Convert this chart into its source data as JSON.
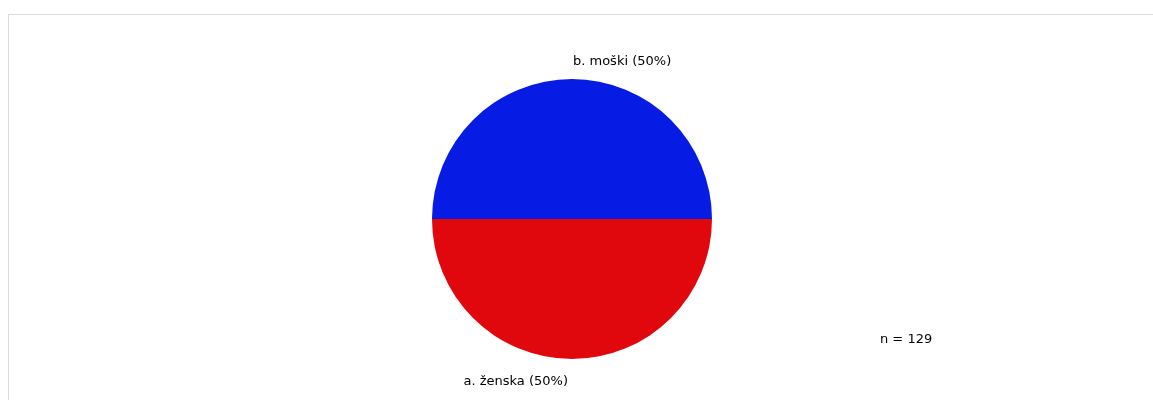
{
  "chart_data": {
    "type": "pie",
    "categories": [
      "a. ženska",
      "b. moški"
    ],
    "values": [
      50,
      50
    ],
    "value_labels": [
      "(50%)",
      "(50%)"
    ],
    "colors": [
      "#e0070d",
      "#061be4"
    ],
    "annotations": [
      {
        "text": "n = 129"
      }
    ],
    "legend": false
  }
}
